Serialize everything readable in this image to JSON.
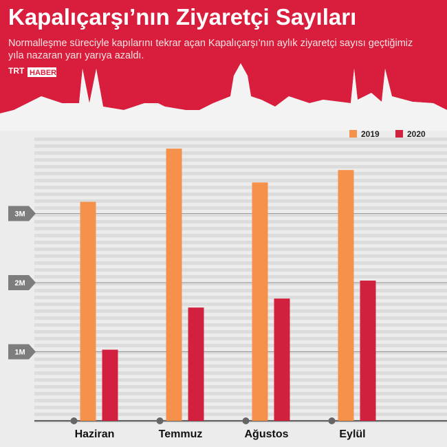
{
  "brand": [
    "TRT",
    "HABER"
  ],
  "chart_data": {
    "type": "bar",
    "title": "Kapalıçarşı’nın Ziyaretçi Sayıları",
    "subtitle": "Normalleşme süreciyle kapılarını tekrar açan Kapalıçarşı’nın aylık ziyaretçi sayısı geçtiğimiz yıla nazaran yarı yarıya azaldı.",
    "categories": [
      "Haziran",
      "Temmuz",
      "Ağustos",
      "Eylül"
    ],
    "series": [
      {
        "name": "2019",
        "color": "#f5914b",
        "values": [
          3170000,
          3940000,
          3450000,
          3630000
        ]
      },
      {
        "name": "2020",
        "color": "#d2213e",
        "values": [
          1030000,
          1640000,
          1770000,
          2030000
        ]
      }
    ],
    "ylim": [
      0,
      4150000
    ],
    "yticks": [
      {
        "value": 1000000,
        "label": "1M"
      },
      {
        "value": 2000000,
        "label": "2M"
      },
      {
        "value": 3000000,
        "label": "3M"
      }
    ],
    "grid": true,
    "legend": "top-right"
  }
}
